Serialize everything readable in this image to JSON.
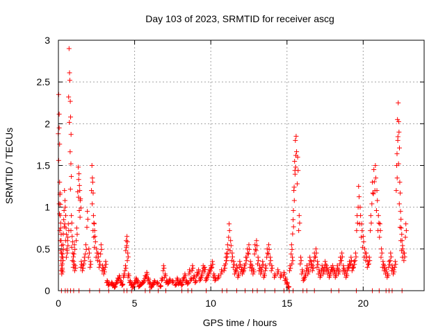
{
  "chart_data": {
    "type": "scatter",
    "title": "Day 103 of 2023, SRMTID for receiver ascg",
    "xlabel": "GPS time / hours",
    "ylabel": "SRMTID / TECUs",
    "xlim": [
      0,
      24
    ],
    "ylim": [
      0,
      3
    ],
    "xticks": [
      0,
      5,
      10,
      15,
      20
    ],
    "xtick_labels": [
      "0",
      "5",
      "10",
      "15",
      "20"
    ],
    "yticks": [
      0,
      0.5,
      1,
      1.5,
      2,
      2.5,
      3
    ],
    "ytick_labels": [
      "0",
      "0.5",
      "1",
      "1.5",
      "2",
      "2.5",
      "3"
    ],
    "grid": true,
    "marker": "plus",
    "color": "#ff0000",
    "series": [
      {
        "name": "SRMTID",
        "x": [
          0.02,
          0.05,
          0.08,
          0.1,
          0.12,
          0.15,
          0.18,
          0.2,
          0.22,
          0.25,
          0.28,
          0.3,
          0.35,
          0.4,
          0.45,
          0.5,
          0.55,
          0.6,
          0.65,
          0.7,
          0.75,
          0.8,
          0.82,
          0.85,
          0.9,
          0.95,
          1.0,
          1.05,
          1.1,
          1.2,
          1.3,
          1.35,
          1.4,
          1.45,
          1.5,
          1.6,
          1.7,
          1.8,
          1.9,
          2.0,
          2.1,
          2.2,
          2.25,
          2.3,
          2.35,
          2.4,
          2.5,
          2.6,
          2.7,
          2.8,
          2.9,
          3.0,
          3.1,
          3.2,
          3.3,
          3.5,
          3.6,
          3.7,
          3.8,
          3.9,
          4.0,
          4.1,
          4.2,
          4.3,
          4.4,
          4.45,
          4.5,
          4.55,
          4.6,
          4.7,
          4.8,
          4.9,
          5.0,
          5.1,
          5.2,
          5.3,
          5.4,
          5.5,
          5.6,
          5.7,
          5.8,
          5.9,
          6.0,
          6.1,
          6.2,
          6.3,
          6.5,
          6.7,
          6.8,
          6.9,
          7.0,
          7.1,
          7.2,
          7.3,
          7.5,
          7.7,
          7.8,
          7.9,
          8.0,
          8.1,
          8.2,
          8.3,
          8.4,
          8.5,
          8.6,
          8.7,
          8.8,
          8.9,
          9.0,
          9.1,
          9.2,
          9.3,
          9.4,
          9.5,
          9.6,
          9.7,
          9.8,
          9.9,
          10.0,
          10.1,
          10.2,
          10.3,
          10.5,
          10.7,
          10.9,
          11.0,
          11.05,
          11.1,
          11.2,
          11.3,
          11.4,
          11.5,
          11.6,
          11.7,
          11.8,
          11.9,
          12.0,
          12.1,
          12.2,
          12.3,
          12.4,
          12.5,
          12.6,
          12.7,
          12.8,
          12.9,
          13.0,
          13.1,
          13.2,
          13.3,
          13.4,
          13.5,
          13.6,
          13.7,
          13.8,
          13.9,
          14.0,
          14.2,
          14.4,
          14.6,
          14.8,
          14.9,
          15.0,
          15.1,
          15.2,
          15.3,
          15.35,
          15.4,
          15.45,
          15.5,
          15.55,
          15.6,
          15.7,
          15.8,
          15.9,
          16.0,
          16.1,
          16.2,
          16.3,
          16.4,
          16.5,
          16.6,
          16.7,
          16.8,
          16.9,
          17.0,
          17.1,
          17.2,
          17.3,
          17.4,
          17.5,
          17.6,
          17.7,
          17.8,
          17.9,
          18.0,
          18.1,
          18.2,
          18.3,
          18.4,
          18.5,
          18.6,
          18.7,
          18.8,
          18.9,
          19.0,
          19.1,
          19.2,
          19.3,
          19.4,
          19.5,
          19.6,
          19.7,
          19.8,
          19.9,
          20.0,
          20.1,
          20.2,
          20.3,
          20.4,
          20.5,
          20.6,
          20.7,
          20.8,
          20.9,
          21.0,
          21.1,
          21.2,
          21.3,
          21.4,
          21.5,
          21.6,
          21.7,
          21.8,
          21.9,
          22.0,
          22.1,
          22.2,
          22.25,
          22.3,
          22.35,
          22.4,
          22.45,
          22.5,
          22.55,
          22.6,
          22.7,
          22.8
        ],
        "y": [
          2.35,
          1.95,
          1.3,
          1.15,
          0.9,
          0.75,
          0.6,
          0.45,
          0.3,
          0.25,
          0.4,
          0.55,
          0.85,
          1.2,
          1.0,
          0.75,
          0.5,
          0.6,
          0.8,
          2.9,
          2.52,
          2.08,
          1.52,
          0.9,
          0.65,
          0.45,
          0.35,
          0.55,
          0.3,
          0.75,
          1.48,
          1.4,
          1.2,
          1.1,
          0.35,
          0.3,
          0.4,
          0.55,
          0.95,
          0.5,
          0.35,
          1.5,
          1.3,
          0.9,
          0.8,
          0.65,
          0.5,
          0.45,
          0.35,
          0.55,
          0.3,
          0.25,
          0.35,
          0.12,
          0.08,
          0.1,
          0.07,
          0.05,
          0.1,
          0.15,
          0.18,
          0.12,
          0.08,
          0.2,
          0.3,
          0.6,
          0.65,
          0.45,
          0.2,
          0.12,
          0.08,
          0.05,
          0.1,
          0.15,
          0.12,
          0.06,
          0.08,
          0.1,
          0.12,
          0.18,
          0.22,
          0.15,
          0.1,
          0.05,
          0.08,
          0.12,
          0.1,
          0.06,
          0.15,
          0.3,
          0.2,
          0.12,
          0.1,
          0.14,
          0.12,
          0.08,
          0.15,
          0.1,
          0.12,
          0.08,
          0.15,
          0.2,
          0.12,
          0.1,
          0.25,
          0.15,
          0.3,
          0.18,
          0.12,
          0.22,
          0.25,
          0.15,
          0.2,
          0.3,
          0.28,
          0.15,
          0.2,
          0.25,
          0.3,
          0.35,
          0.2,
          0.15,
          0.18,
          0.25,
          0.3,
          0.4,
          0.45,
          0.55,
          0.8,
          0.6,
          0.45,
          0.35,
          0.25,
          0.3,
          0.2,
          0.35,
          0.28,
          0.25,
          0.3,
          0.4,
          0.5,
          0.55,
          0.35,
          0.3,
          0.25,
          0.55,
          0.6,
          0.4,
          0.3,
          0.25,
          0.35,
          0.2,
          0.3,
          0.5,
          0.55,
          0.4,
          0.3,
          0.2,
          0.25,
          0.2,
          0.22,
          0.15,
          0.1,
          0.05,
          0.3,
          0.55,
          0.4,
          0.85,
          1.2,
          1.55,
          1.8,
          1.85,
          1.6,
          0.9,
          0.4,
          0.25,
          0.15,
          0.2,
          0.3,
          0.25,
          0.4,
          0.35,
          0.3,
          0.45,
          0.5,
          0.35,
          0.25,
          0.2,
          0.3,
          0.25,
          0.35,
          0.3,
          0.25,
          0.2,
          0.28,
          0.3,
          0.25,
          0.2,
          0.3,
          0.25,
          0.4,
          0.45,
          0.3,
          0.25,
          0.2,
          0.3,
          0.35,
          0.4,
          0.3,
          0.35,
          0.45,
          0.9,
          1.25,
          1.0,
          0.8,
          0.65,
          0.5,
          0.45,
          0.35,
          0.4,
          0.9,
          1.3,
          1.45,
          1.5,
          1.2,
          0.9,
          0.8,
          0.5,
          0.35,
          0.3,
          0.25,
          0.2,
          0.35,
          0.45,
          0.3,
          0.25,
          0.35,
          1.5,
          2.05,
          2.25,
          1.9,
          1.3,
          0.95,
          0.75,
          0.6,
          0.5,
          0.45,
          0.8
        ]
      }
    ],
    "zero_line_x": [
      0.2,
      0.45,
      0.6,
      0.8,
      1.0,
      1.35,
      2.05,
      2.7,
      3.3,
      4.3,
      4.5,
      4.8,
      5.7,
      6.0,
      6.55,
      7.05,
      8.1,
      8.5,
      8.75,
      9.7,
      10.75,
      11.05,
      11.7,
      12.25,
      12.75,
      13.05,
      13.55,
      14.2,
      14.8,
      15.15,
      15.4,
      16.05,
      16.3,
      16.8,
      17.9,
      18.4,
      19.55,
      20.6,
      21.05,
      21.5,
      21.7,
      21.9,
      22.55
    ],
    "zero_line_y": 0
  }
}
